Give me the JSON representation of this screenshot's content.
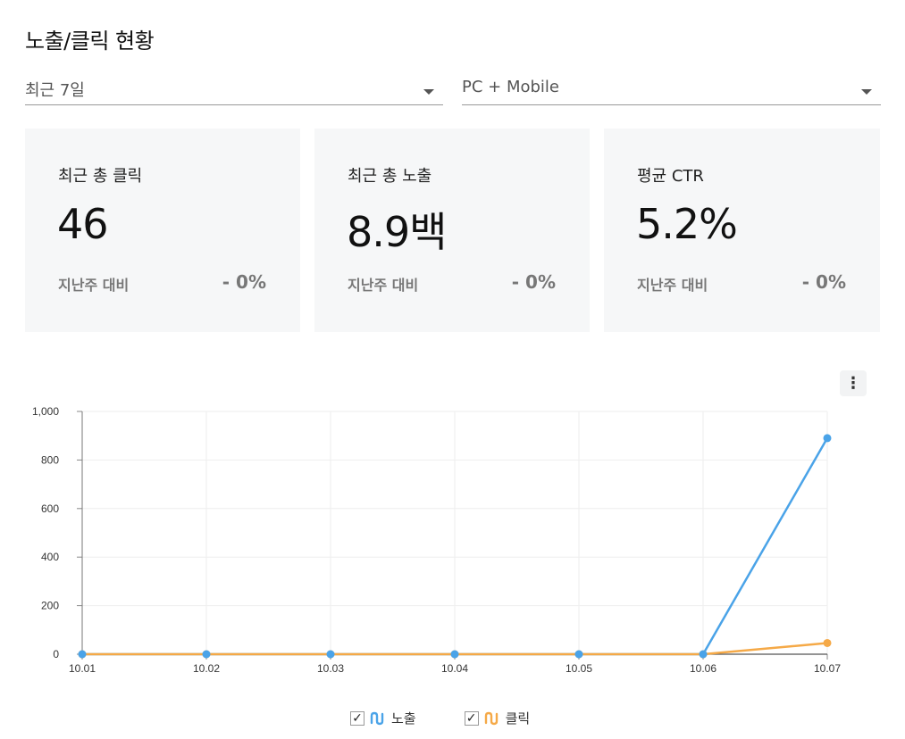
{
  "page": {
    "title": "노출/클릭 현황"
  },
  "filters": {
    "period": "최근 7일",
    "device": "PC + Mobile"
  },
  "cards": [
    {
      "title": "최근 총 클릭",
      "value": "46",
      "compare_label": "지난주 대비",
      "change": "- 0%"
    },
    {
      "title": "최근 총 노출",
      "value": "8.9백",
      "compare_label": "지난주 대비",
      "change": "- 0%"
    },
    {
      "title": "평균 CTR",
      "value": "5.2%",
      "compare_label": "지난주 대비",
      "change": "- 0%"
    }
  ],
  "chart_menu_label": "⋮",
  "chart_data": {
    "type": "line",
    "categories": [
      "10.01",
      "10.02",
      "10.03",
      "10.04",
      "10.05",
      "10.06",
      "10.07"
    ],
    "ylim": [
      0,
      1000
    ],
    "yticks": [
      0,
      200,
      400,
      600,
      800,
      1000
    ],
    "ytick_labels": [
      "0",
      "200",
      "400",
      "600",
      "800",
      "1,000"
    ],
    "grid": true,
    "series": [
      {
        "name": "노출",
        "color": "#4aa3e8",
        "values": [
          0,
          0,
          0,
          0,
          0,
          0,
          890
        ]
      },
      {
        "name": "클릭",
        "color": "#f5a947",
        "values": [
          0,
          0,
          0,
          0,
          0,
          0,
          46
        ]
      }
    ],
    "legend_position": "bottom"
  }
}
